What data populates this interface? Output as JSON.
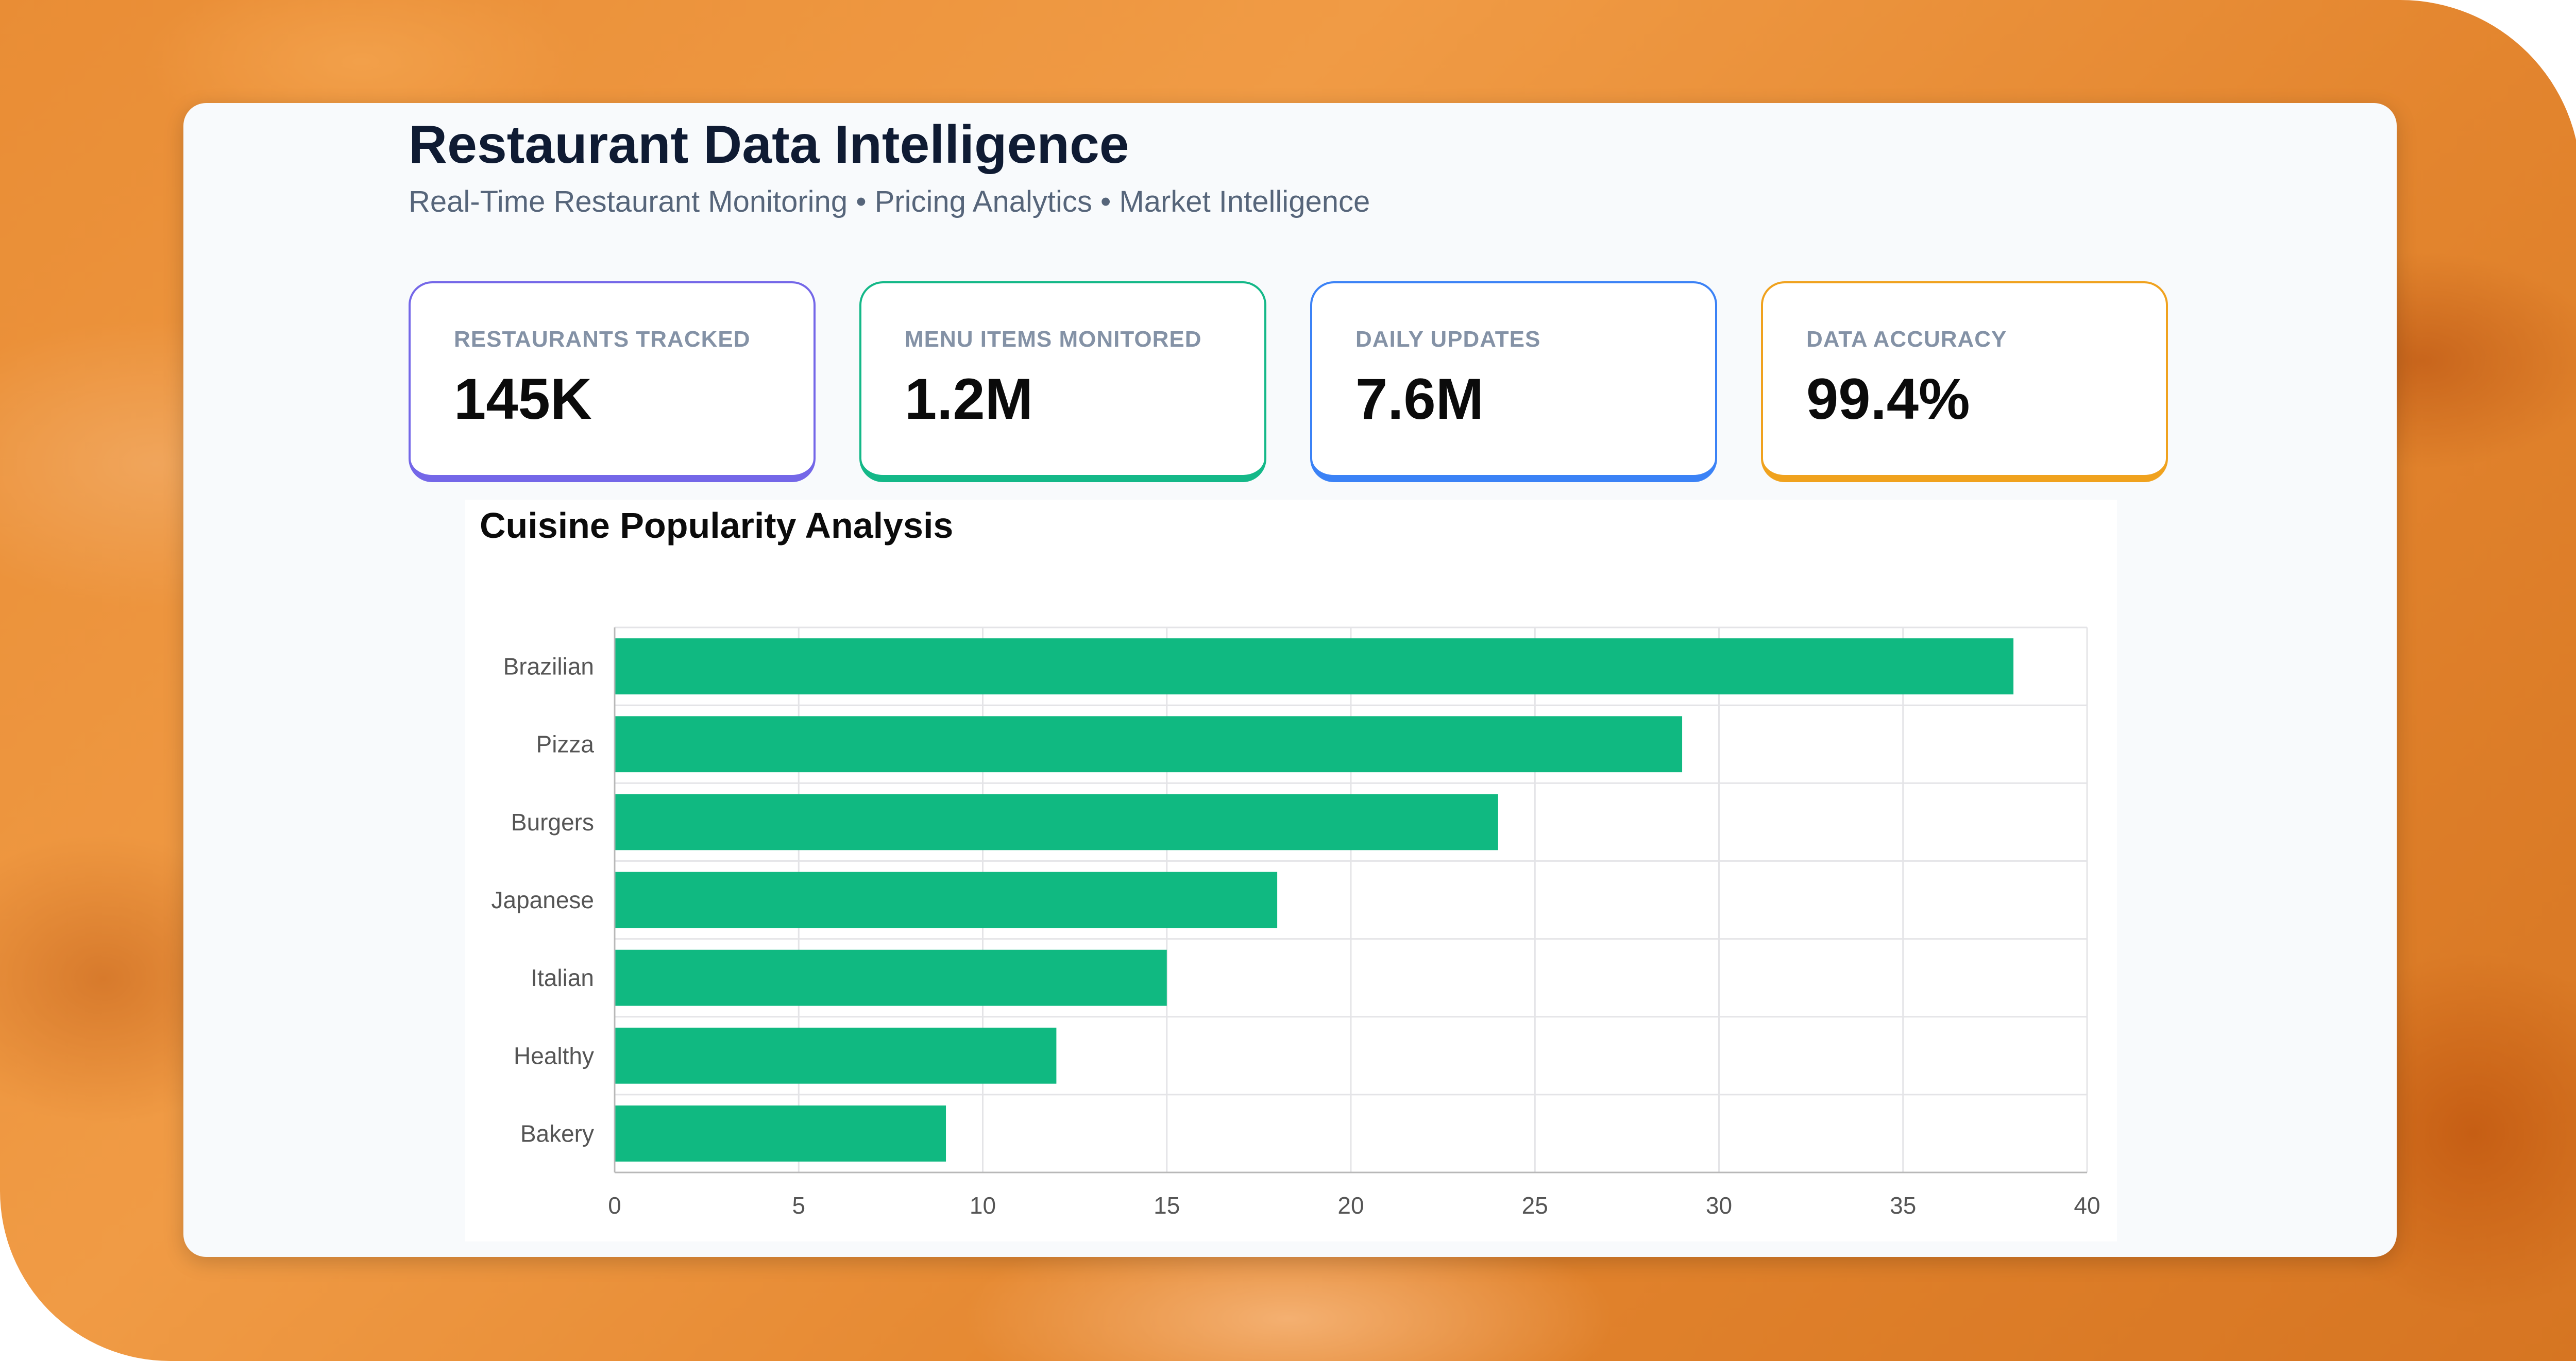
{
  "header": {
    "title": "Restaurant Data Intelligence",
    "subtitle": "Real-Time Restaurant Monitoring • Pricing Analytics • Market Intelligence"
  },
  "stats": [
    {
      "label": "RESTAURANTS TRACKED",
      "value": "145K",
      "color": "#7467e8"
    },
    {
      "label": "MENU ITEMS MONITORED",
      "value": "1.2M",
      "color": "#14b888"
    },
    {
      "label": "DAILY UPDATES",
      "value": "7.6M",
      "color": "#3b82f6"
    },
    {
      "label": "DATA ACCURACY",
      "value": "99.4%",
      "color": "#f0a21e"
    }
  ],
  "chart_data": {
    "type": "bar",
    "orientation": "horizontal",
    "title": "Cuisine Popularity Analysis",
    "categories": [
      "Brazilian",
      "Pizza",
      "Burgers",
      "Japanese",
      "Italian",
      "Healthy",
      "Bakery"
    ],
    "values": [
      38,
      29,
      24,
      18,
      15,
      12,
      9
    ],
    "xlim": [
      0,
      40
    ],
    "x_ticks": [
      0,
      5,
      10,
      15,
      20,
      25,
      30,
      35,
      40
    ],
    "bar_color": "#10b981",
    "grid": true,
    "legend": "none"
  }
}
